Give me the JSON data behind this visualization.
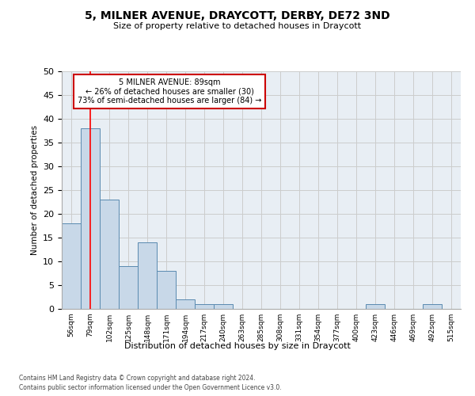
{
  "title1": "5, MILNER AVENUE, DRAYCOTT, DERBY, DE72 3ND",
  "title2": "Size of property relative to detached houses in Draycott",
  "xlabel": "Distribution of detached houses by size in Draycott",
  "ylabel": "Number of detached properties",
  "footnote1": "Contains HM Land Registry data © Crown copyright and database right 2024.",
  "footnote2": "Contains public sector information licensed under the Open Government Licence v3.0.",
  "bar_labels": [
    "56sqm",
    "79sqm",
    "102sqm",
    "125sqm",
    "148sqm",
    "171sqm",
    "194sqm",
    "217sqm",
    "240sqm",
    "263sqm",
    "285sqm",
    "308sqm",
    "331sqm",
    "354sqm",
    "377sqm",
    "400sqm",
    "423sqm",
    "446sqm",
    "469sqm",
    "492sqm",
    "515sqm"
  ],
  "bar_values": [
    18,
    38,
    23,
    9,
    14,
    8,
    2,
    1,
    1,
    0,
    0,
    0,
    0,
    0,
    0,
    0,
    1,
    0,
    0,
    1,
    0
  ],
  "bar_color": "#c8d8e8",
  "bar_edge_color": "#5a8ab0",
  "grid_color": "#cccccc",
  "annotation_box_color": "#cc0000",
  "annotation_text_line1": "5 MILNER AVENUE: 89sqm",
  "annotation_text_line2": "← 26% of detached houses are smaller (30)",
  "annotation_text_line3": "73% of semi-detached houses are larger (84) →",
  "red_line_x": 1.0,
  "ylim": [
    0,
    50
  ],
  "yticks": [
    0,
    5,
    10,
    15,
    20,
    25,
    30,
    35,
    40,
    45,
    50
  ],
  "bg_color": "#e8eef4"
}
